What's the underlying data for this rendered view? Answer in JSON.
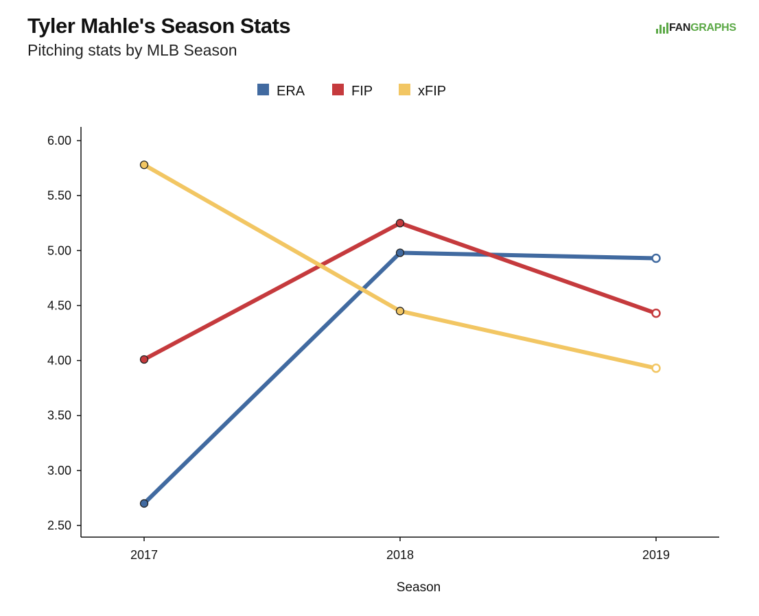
{
  "title": "Tyler Mahle's Season Stats",
  "subtitle": "Pitching stats by MLB Season",
  "brand": {
    "part1": "FAN",
    "part2": "GRAPHS",
    "icon": "fangraphs-bars-icon",
    "color": "#5aa845"
  },
  "chart_data": {
    "type": "line",
    "x": [
      "2017",
      "2018",
      "2019"
    ],
    "xlabel": "Season",
    "ylabel": "",
    "ylim": [
      2.5,
      6.0
    ],
    "yticks": [
      "2.50",
      "3.00",
      "3.50",
      "4.00",
      "4.50",
      "5.00",
      "5.50",
      "6.00"
    ],
    "grid": false,
    "legend_position": "top-center",
    "series": [
      {
        "name": "ERA",
        "color": "#416aa0",
        "values": [
          2.7,
          4.98,
          4.93
        ],
        "hollow_last": true
      },
      {
        "name": "FIP",
        "color": "#c53a3d",
        "values": [
          4.01,
          5.25,
          4.43
        ],
        "hollow_last": true
      },
      {
        "name": "xFIP",
        "color": "#f2c663",
        "values": [
          5.78,
          4.45,
          3.93
        ],
        "hollow_last": true
      }
    ]
  }
}
